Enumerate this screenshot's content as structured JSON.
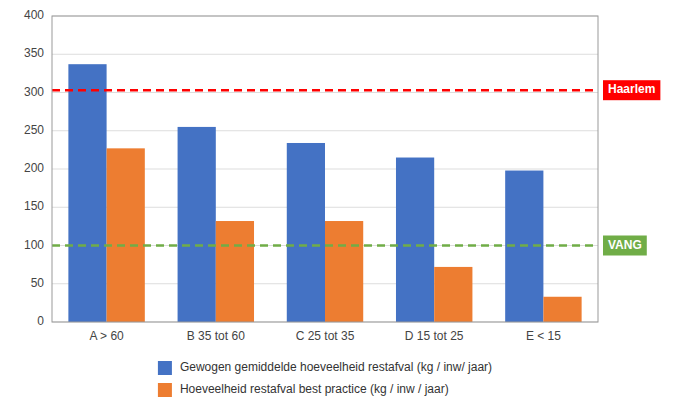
{
  "chart_data": {
    "type": "bar",
    "categories": [
      "A > 60",
      "B 35 tot 60",
      "C 25 tot 35",
      "D 15 tot 25",
      "E < 15"
    ],
    "series": [
      {
        "name": "Gewogen gemiddelde hoeveelheid restafval (kg / inw/ jaar)",
        "color": "#4472C4",
        "values": [
          337,
          255,
          234,
          215,
          198
        ]
      },
      {
        "name": "Hoeveelheid restafval best practice (kg / inw / jaar)",
        "color": "#ED7D31",
        "values": [
          227,
          132,
          132,
          72,
          33
        ]
      }
    ],
    "annotations": [
      {
        "text": "Haarlem",
        "y": 303,
        "color": "#FF0000"
      },
      {
        "text": "VANG",
        "y": 100,
        "color": "#70AD47"
      }
    ],
    "ylim": [
      0,
      400
    ],
    "yticks": [
      0,
      50,
      100,
      150,
      200,
      250,
      300,
      350,
      400
    ],
    "grid": true,
    "legend": "bottom"
  }
}
